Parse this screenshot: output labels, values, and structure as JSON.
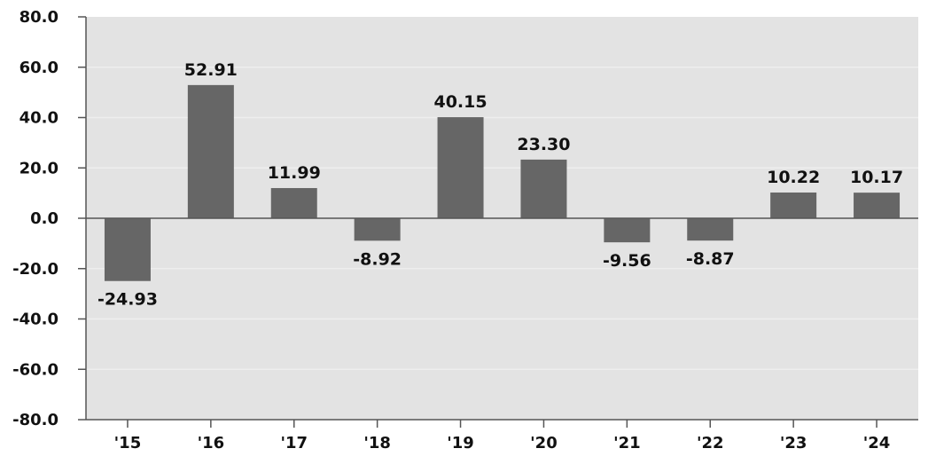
{
  "chart_data": {
    "type": "bar",
    "title": "",
    "xlabel": "",
    "ylabel": "",
    "categories": [
      "'15",
      "'16",
      "'17",
      "'18",
      "'19",
      "'20",
      "'21",
      "'22",
      "'23",
      "'24"
    ],
    "values": [
      -24.93,
      52.91,
      11.99,
      -8.92,
      40.15,
      23.3,
      -9.56,
      -8.87,
      10.22,
      10.17
    ],
    "value_labels": [
      "-24.93",
      "52.91",
      "11.99",
      "-8.92",
      "40.15",
      "23.30",
      "-9.56",
      "-8.87",
      "10.22",
      "10.17"
    ],
    "ylim": [
      -80,
      80
    ],
    "yticks": [
      80,
      60,
      40,
      20,
      0,
      -20,
      -40,
      -60,
      -80
    ],
    "ytick_labels": [
      "80.0",
      "60.0",
      "40.0",
      "20.0",
      "0.0",
      "-20.0",
      "-40.0",
      "-60.0",
      "-80.0"
    ],
    "grid": true,
    "legend": false,
    "colors": {
      "plot_background": "#e3e3e3",
      "bar": "#666666",
      "gridline": "#eeeeee",
      "axis": "#555555"
    }
  }
}
